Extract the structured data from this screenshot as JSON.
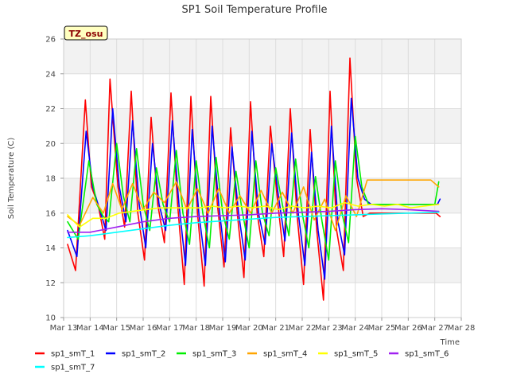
{
  "chart_data": {
    "type": "line",
    "title": "SP1 Soil Temperature Profile",
    "xlabel": "Time",
    "ylabel": "Soil Temperature (C)",
    "ylim": [
      10,
      26
    ],
    "yticks": [
      10,
      12,
      14,
      16,
      18,
      20,
      22,
      24,
      26
    ],
    "xlim": [
      0,
      15
    ],
    "xticks": [
      "Mar 13",
      "Mar 14",
      "Mar 15",
      "Mar 16",
      "Mar 17",
      "Mar 18",
      "Mar 19",
      "Mar 20",
      "Mar 21",
      "Mar 22",
      "Mar 23",
      "Mar 24",
      "Mar 25",
      "Mar 26",
      "Mar 27",
      "Mar 28"
    ],
    "x_units": "days since Mar 13 00:00",
    "grid": true,
    "annotation": "TZ_osu",
    "legend_position": "bottom",
    "series": [
      {
        "name": "sp1_smT_1",
        "color": "#ff0000",
        "x": [
          0.15,
          0.45,
          0.82,
          1.05,
          1.3,
          1.55,
          1.75,
          2.05,
          2.3,
          2.55,
          2.8,
          3.05,
          3.3,
          3.55,
          3.8,
          4.05,
          4.3,
          4.55,
          4.8,
          5.05,
          5.3,
          5.55,
          5.8,
          6.05,
          6.3,
          6.55,
          6.8,
          7.05,
          7.3,
          7.55,
          7.8,
          8.05,
          8.3,
          8.55,
          8.8,
          9.05,
          9.3,
          9.55,
          9.8,
          10.05,
          10.3,
          10.55,
          10.8,
          11.05,
          11.3,
          11.55,
          11.8,
          12.05,
          12.3,
          12.55,
          12.8,
          13.05,
          13.3,
          13.55,
          13.8,
          14.05,
          14.2
        ],
        "y": [
          14.2,
          12.7,
          22.5,
          17.5,
          16.5,
          14.5,
          23.7,
          17.5,
          15.2,
          23.0,
          16.0,
          13.3,
          21.5,
          16.5,
          14.3,
          22.9,
          16.5,
          11.9,
          22.7,
          16.0,
          11.8,
          22.7,
          16.5,
          12.9,
          20.9,
          16.0,
          12.3,
          22.4,
          16.0,
          13.5,
          21.0,
          17.0,
          13.5,
          22.0,
          16.0,
          11.9,
          20.8,
          15.0,
          11.0,
          23.0,
          15.0,
          12.7,
          24.9,
          18.0,
          15.8,
          16.0,
          16.0,
          16.0,
          16.0,
          16.0,
          16.0,
          16.0,
          16.0,
          16.0,
          16.0,
          16.0,
          15.8
        ]
      },
      {
        "name": "sp1_smT_2",
        "color": "#0000ff",
        "x": [
          0.15,
          0.5,
          0.85,
          1.1,
          1.3,
          1.6,
          1.85,
          2.1,
          2.35,
          2.6,
          2.85,
          3.1,
          3.35,
          3.6,
          3.85,
          4.1,
          4.35,
          4.6,
          4.85,
          5.1,
          5.35,
          5.6,
          5.85,
          6.1,
          6.35,
          6.6,
          6.85,
          7.1,
          7.35,
          7.6,
          7.85,
          8.1,
          8.35,
          8.6,
          8.85,
          9.1,
          9.35,
          9.6,
          9.85,
          10.1,
          10.35,
          10.6,
          10.85,
          11.1,
          11.35,
          11.6,
          11.85,
          12.1,
          12.35,
          12.6,
          12.85,
          13.1,
          13.35,
          13.6,
          13.85,
          14.1,
          14.2
        ],
        "y": [
          15.0,
          13.5,
          20.7,
          17.5,
          16.5,
          15.0,
          22.0,
          17.5,
          15.5,
          21.3,
          16.5,
          14.0,
          20.0,
          16.5,
          15.0,
          21.3,
          16.5,
          13.0,
          20.8,
          16.0,
          13.0,
          21.0,
          16.5,
          13.2,
          19.8,
          16.0,
          13.3,
          20.7,
          16.0,
          14.2,
          20.0,
          17.0,
          14.4,
          20.6,
          16.0,
          13.0,
          19.5,
          15.0,
          12.2,
          21.0,
          15.5,
          13.6,
          22.6,
          18.0,
          16.8,
          16.5,
          16.5,
          16.5,
          16.5,
          16.5,
          16.5,
          16.5,
          16.5,
          16.5,
          16.5,
          16.5,
          16.8
        ]
      },
      {
        "name": "sp1_smT_3",
        "color": "#00ee00",
        "x": [
          0.15,
          0.55,
          0.95,
          1.25,
          1.5,
          1.7,
          2.0,
          2.25,
          2.5,
          2.75,
          3.0,
          3.25,
          3.5,
          3.75,
          4.0,
          4.25,
          4.5,
          4.75,
          5.0,
          5.25,
          5.5,
          5.75,
          6.0,
          6.25,
          6.5,
          6.75,
          7.0,
          7.25,
          7.5,
          7.75,
          8.0,
          8.25,
          8.5,
          8.75,
          9.0,
          9.25,
          9.5,
          9.75,
          10.0,
          10.25,
          10.5,
          10.75,
          11.0,
          11.25,
          11.5,
          11.75,
          12.0,
          12.25,
          12.5,
          12.75,
          13.0,
          13.25,
          13.5,
          13.75,
          14.0,
          14.15
        ],
        "y": [
          15.5,
          14.5,
          19.0,
          16.5,
          15.8,
          15.5,
          20.0,
          17.0,
          15.5,
          19.7,
          16.5,
          15.0,
          18.6,
          16.5,
          15.5,
          19.6,
          16.0,
          14.2,
          19.0,
          16.0,
          14.0,
          19.2,
          16.0,
          14.5,
          18.4,
          16.0,
          14.0,
          19.0,
          16.0,
          14.7,
          18.6,
          16.5,
          14.7,
          19.1,
          16.0,
          14.0,
          18.1,
          15.5,
          13.3,
          19.0,
          16.0,
          14.3,
          20.4,
          17.5,
          16.5,
          16.5,
          16.5,
          16.5,
          16.5,
          16.5,
          16.5,
          16.5,
          16.5,
          16.5,
          16.5,
          17.8
        ]
      },
      {
        "name": "sp1_smT_4",
        "color": "#ffa500",
        "x": [
          0.15,
          0.6,
          1.1,
          1.5,
          1.85,
          2.2,
          2.6,
          3.0,
          3.4,
          3.8,
          4.25,
          4.65,
          5.05,
          5.45,
          5.85,
          6.25,
          6.65,
          7.05,
          7.45,
          7.85,
          8.25,
          8.65,
          9.05,
          9.45,
          9.85,
          10.25,
          10.65,
          11.05,
          11.45,
          11.85,
          12.25,
          12.65,
          13.05,
          13.45,
          13.85,
          14.15
        ],
        "y": [
          15.8,
          15.3,
          16.9,
          16.0,
          17.7,
          16.2,
          17.7,
          16.2,
          17.2,
          16.6,
          17.8,
          16.2,
          17.4,
          16.0,
          17.4,
          16.0,
          17.0,
          16.0,
          17.3,
          16.0,
          17.2,
          16.0,
          17.5,
          15.6,
          16.8,
          15.0,
          17.0,
          15.8,
          17.9,
          17.9,
          17.9,
          17.9,
          17.9,
          17.9,
          17.9,
          17.5
        ]
      },
      {
        "name": "sp1_smT_5",
        "color": "#ffff00",
        "x": [
          0.15,
          0.6,
          1.1,
          1.6,
          2.1,
          2.6,
          3.1,
          3.6,
          4.1,
          4.6,
          5.1,
          5.6,
          6.1,
          6.6,
          7.1,
          7.6,
          8.1,
          8.6,
          9.1,
          9.6,
          10.1,
          10.6,
          11.1,
          11.6,
          12.1,
          12.6,
          13.1,
          13.6,
          14.15
        ],
        "y": [
          15.9,
          15.2,
          15.7,
          15.7,
          16.0,
          16.1,
          16.2,
          16.3,
          16.3,
          16.3,
          16.3,
          16.4,
          16.3,
          16.4,
          16.3,
          16.4,
          16.2,
          16.4,
          16.3,
          16.4,
          16.3,
          16.6,
          16.4,
          16.5,
          16.4,
          16.5,
          16.3,
          16.4,
          16.5
        ]
      },
      {
        "name": "sp1_smT_6",
        "color": "#a020f0",
        "x": [
          0.15,
          1.0,
          2.0,
          3.0,
          4.0,
          5.0,
          6.0,
          7.0,
          8.0,
          9.0,
          10.0,
          11.0,
          12.0,
          13.0,
          14.15
        ],
        "y": [
          14.9,
          14.9,
          15.2,
          15.5,
          15.7,
          15.8,
          15.85,
          15.9,
          16.0,
          16.05,
          16.1,
          16.2,
          16.25,
          16.2,
          16.1
        ]
      },
      {
        "name": "sp1_smT_7",
        "color": "#00ffff",
        "x": [
          0.15,
          1.0,
          2.0,
          3.0,
          4.0,
          5.0,
          6.0,
          7.0,
          8.0,
          9.0,
          10.0,
          11.0,
          12.0,
          13.0,
          14.15
        ],
        "y": [
          14.6,
          14.7,
          14.9,
          15.1,
          15.3,
          15.45,
          15.55,
          15.65,
          15.75,
          15.8,
          15.85,
          15.9,
          15.95,
          16.0,
          16.05
        ]
      }
    ]
  }
}
